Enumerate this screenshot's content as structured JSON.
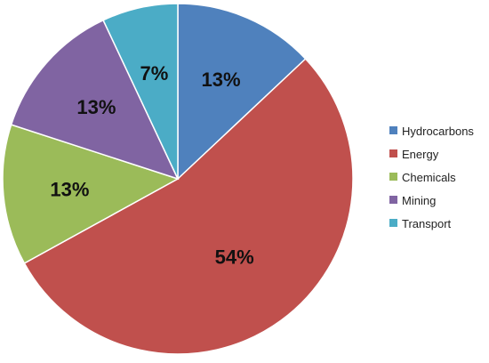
{
  "chart_data": {
    "type": "pie",
    "title": "",
    "categories": [
      "Hydrocarbons",
      "Energy",
      "Chemicals",
      "Mining",
      "Transport"
    ],
    "values": [
      13,
      54,
      13,
      13,
      7
    ],
    "value_labels": [
      "13%",
      "54%",
      "13%",
      "13%",
      "7%"
    ],
    "colors": [
      "#4F81BD",
      "#C0504D",
      "#9BBB59",
      "#8064A2",
      "#4BACC6"
    ],
    "start_angle_deg": 0,
    "direction": "clockwise",
    "legend_placement": "right"
  }
}
